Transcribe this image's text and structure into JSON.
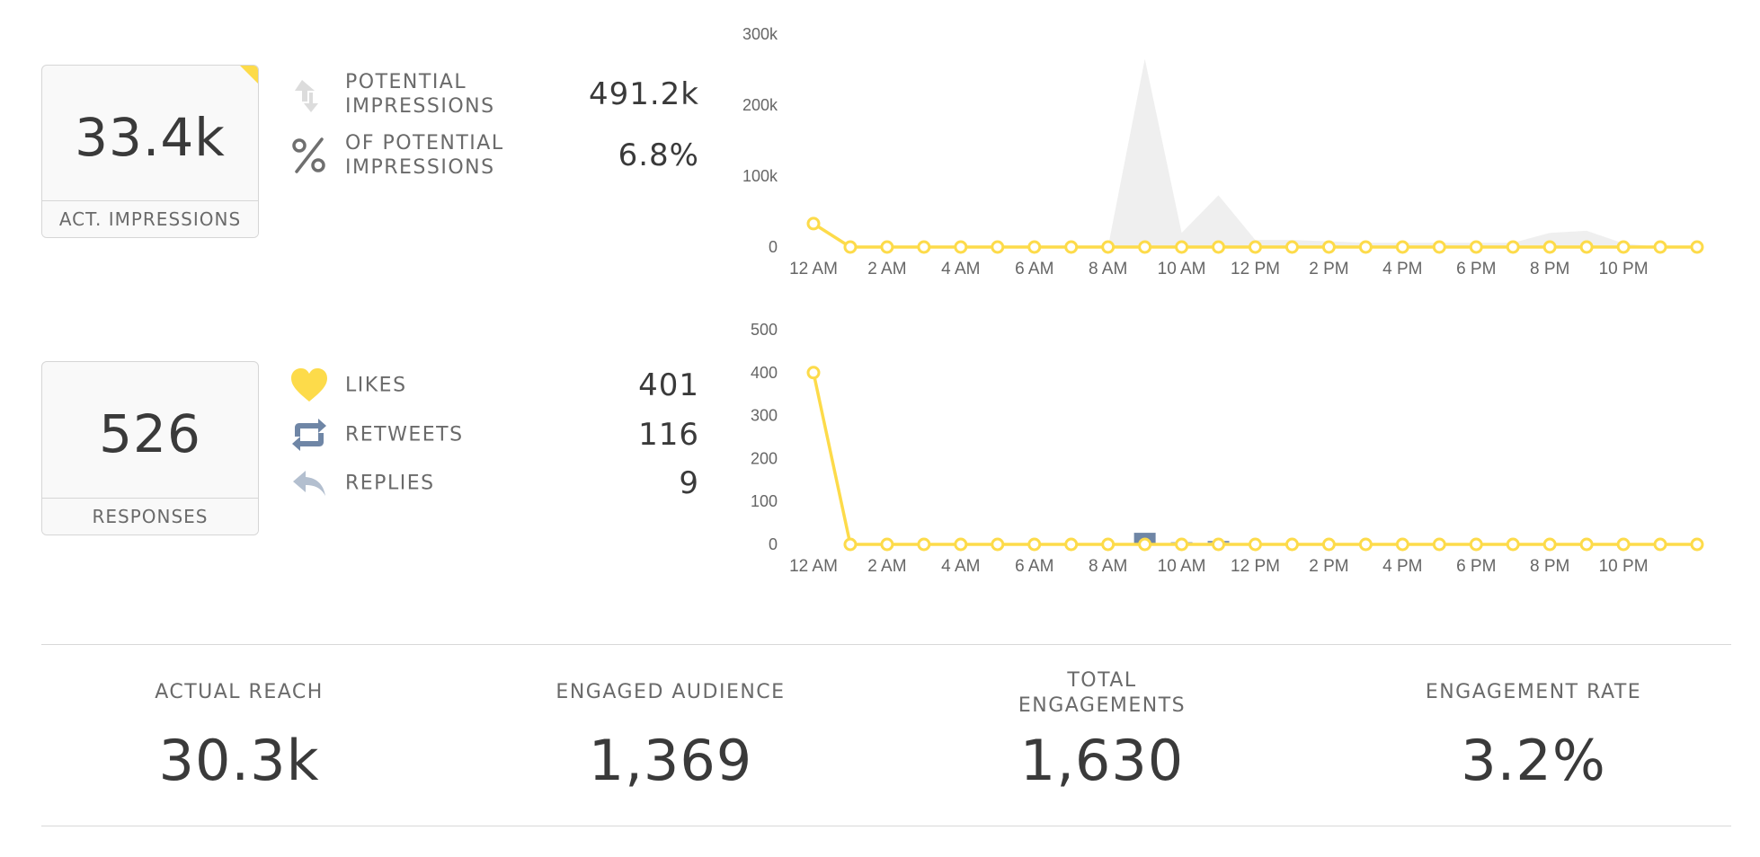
{
  "impressions": {
    "total_value": "33.4k",
    "total_caption": "ACT. IMPRESSIONS",
    "metrics": [
      {
        "icon": "share-arrows-icon",
        "label": "POTENTIAL\nIMPRESSIONS",
        "value": "491.2k"
      },
      {
        "icon": "percent-icon",
        "label": "OF POTENTIAL\nIMPRESSIONS",
        "value": "6.8%"
      }
    ]
  },
  "responses": {
    "total_value": "526",
    "total_caption": "RESPONSES",
    "metrics": [
      {
        "icon": "heart-icon",
        "label": "LIKES",
        "value": "401"
      },
      {
        "icon": "retweet-icon",
        "label": "RETWEETS",
        "value": "116"
      },
      {
        "icon": "reply-icon",
        "label": "REPLIES",
        "value": "9"
      }
    ]
  },
  "stats": [
    {
      "label": "ACTUAL REACH",
      "value": "30.3k"
    },
    {
      "label": "ENGAGED AUDIENCE",
      "value": "1,369"
    },
    {
      "label": "TOTAL\nENGAGEMENTS",
      "value": "1,630"
    },
    {
      "label": "ENGAGEMENT RATE",
      "value": "3.2%"
    }
  ],
  "colors": {
    "accent_yellow": "#fddb4a",
    "area_gray": "#efefef",
    "bar_blue": "#6f86a6",
    "bar_light": "#b3bfcf",
    "axis_text": "#666666"
  },
  "chart_data": [
    {
      "type": "area",
      "x_ticks": [
        "12 AM",
        "2 AM",
        "4 AM",
        "6 AM",
        "8 AM",
        "10 AM",
        "12 PM",
        "2 PM",
        "4 PM",
        "6 PM",
        "8 PM",
        "10 PM"
      ],
      "y_ticks": [
        "300k",
        "200k",
        "100k",
        "0"
      ],
      "ylim": [
        0,
        300000
      ],
      "x_hours": [
        0,
        1,
        2,
        3,
        4,
        5,
        6,
        7,
        8,
        9,
        10,
        11,
        12,
        13,
        14,
        15,
        16,
        17,
        18,
        19,
        20,
        21,
        22,
        23,
        24
      ],
      "series": [
        {
          "kind": "area",
          "values": [
            0,
            0,
            0,
            0,
            0,
            0,
            0,
            0,
            0,
            265000,
            20000,
            73000,
            10000,
            10000,
            8000,
            6000,
            6000,
            6000,
            6000,
            6000,
            20000,
            23000,
            5000,
            0,
            0
          ]
        },
        {
          "kind": "line",
          "values": [
            33000,
            0,
            0,
            0,
            0,
            0,
            0,
            0,
            0,
            0,
            0,
            0,
            0,
            0,
            0,
            0,
            0,
            0,
            0,
            0,
            0,
            0,
            0,
            0,
            0
          ]
        }
      ]
    },
    {
      "type": "bar",
      "x_ticks": [
        "12 AM",
        "2 AM",
        "4 AM",
        "6 AM",
        "8 AM",
        "10 AM",
        "12 PM",
        "2 PM",
        "4 PM",
        "6 PM",
        "8 PM",
        "10 PM"
      ],
      "y_ticks": [
        "500",
        "400",
        "300",
        "200",
        "100",
        "0"
      ],
      "ylim": [
        0,
        500
      ],
      "x_hours": [
        0,
        1,
        2,
        3,
        4,
        5,
        6,
        7,
        8,
        9,
        10,
        11,
        12,
        13,
        14,
        15,
        16,
        17,
        18,
        19,
        20,
        21,
        22,
        23,
        24
      ],
      "series": [
        {
          "kind": "bar-dark",
          "values": [
            0,
            0,
            0,
            0,
            0,
            0,
            0,
            0,
            0,
            27,
            5,
            8,
            0,
            0,
            3,
            0,
            0,
            0,
            2,
            0,
            0,
            0,
            2,
            0,
            0
          ]
        },
        {
          "kind": "bar-light",
          "values": [
            0,
            0,
            0,
            0,
            0,
            0,
            0,
            0,
            0,
            0,
            4,
            5,
            3,
            0,
            0,
            0,
            0,
            0,
            0,
            0,
            0,
            0,
            0,
            0,
            0
          ]
        },
        {
          "kind": "line",
          "values": [
            400,
            0,
            0,
            0,
            0,
            0,
            0,
            0,
            0,
            0,
            0,
            0,
            0,
            0,
            0,
            0,
            0,
            0,
            0,
            0,
            0,
            0,
            0,
            0,
            0
          ]
        }
      ]
    }
  ]
}
